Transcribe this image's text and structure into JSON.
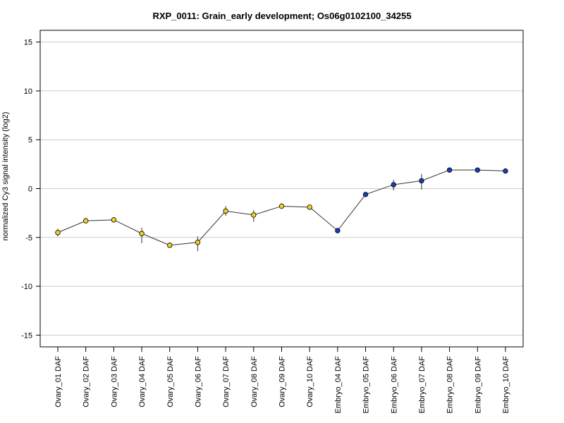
{
  "chart_data": {
    "type": "line",
    "title": "RXP_0011: Grain_early development; Os06g0102100_34255",
    "xlabel": "",
    "ylabel": "normalized Cy3 signal intensity (log2)",
    "ylim": [
      -16.2,
      16.2
    ],
    "yticks": [
      -15,
      -10,
      -5,
      0,
      5,
      10,
      15
    ],
    "grid": true,
    "categories": [
      "Ovary_01 DAF",
      "Ovary_02 DAF",
      "Ovary_03 DAF",
      "Ovary_04 DAF",
      "Ovary_05 DAF",
      "Ovary_06 DAF",
      "Ovary_07 DAF",
      "Ovary_08 DAF",
      "Ovary_09 DAF",
      "Ovary_10 DAF",
      "Embryo_04 DAF",
      "Embryo_05 DAF",
      "Embryo_06 DAF",
      "Embryo_07 DAF",
      "Embryo_08 DAF",
      "Embryo_09 DAF",
      "Embryo_10 DAF"
    ],
    "values": [
      -4.5,
      -3.3,
      -3.2,
      -4.6,
      -5.8,
      -5.5,
      -2.3,
      -2.7,
      -1.8,
      -1.9,
      -4.3,
      -0.6,
      0.4,
      0.8,
      1.9,
      1.9,
      1.8
    ],
    "error_low": [
      -4.9,
      -3.5,
      -3.4,
      -5.6,
      -6.0,
      -6.4,
      -2.8,
      -3.4,
      -2.1,
      -2.1,
      -4.4,
      -0.7,
      -0.2,
      -0.1,
      1.8,
      1.8,
      1.7
    ],
    "error_high": [
      -4.1,
      -3.1,
      -3.0,
      -4.0,
      -5.6,
      -4.9,
      -1.8,
      -2.2,
      -1.5,
      -1.7,
      -4.2,
      -0.4,
      0.9,
      1.5,
      2.0,
      2.0,
      1.9
    ],
    "point_colors": [
      "#f5d21a",
      "#f5d21a",
      "#f5d21a",
      "#f5d21a",
      "#f5d21a",
      "#f5d21a",
      "#f5d21a",
      "#f5d21a",
      "#f5d21a",
      "#f5d21a",
      "#1a3db8",
      "#1a3db8",
      "#1a3db8",
      "#1a3db8",
      "#1a3db8",
      "#1a3db8",
      "#1a3db8"
    ],
    "colors": {
      "line": "#333333",
      "grid": "#cccccc",
      "frame": "#000000"
    }
  }
}
